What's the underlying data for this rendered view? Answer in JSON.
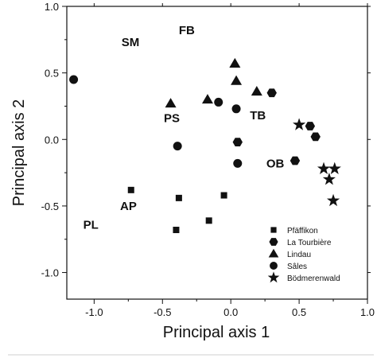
{
  "chart_data": {
    "type": "scatter",
    "xlabel": "Principal axis 1",
    "ylabel": "Principal axis 2",
    "xlim": [
      -1.2,
      1.0
    ],
    "ylim": [
      -1.2,
      1.0
    ],
    "x_ticks": [
      "-1.0",
      "-0.5",
      "0.0",
      "0.5",
      "1.0"
    ],
    "y_ticks": [
      "1.0",
      "0.5",
      "0.0",
      "-0.5",
      "-1.0"
    ],
    "grid": false,
    "legend_position": "bottom-right",
    "series": [
      {
        "name": "Pfäffikon",
        "marker": "square",
        "points": [
          [
            -0.73,
            -0.38
          ],
          [
            -0.38,
            -0.44
          ],
          [
            -0.05,
            -0.42
          ],
          [
            -0.16,
            -0.61
          ],
          [
            -0.4,
            -0.68
          ]
        ]
      },
      {
        "name": "La Tourbière",
        "marker": "hexagon",
        "points": [
          [
            0.3,
            0.35
          ],
          [
            0.05,
            -0.02
          ],
          [
            0.58,
            0.1
          ],
          [
            0.62,
            0.02
          ],
          [
            0.47,
            -0.16
          ]
        ]
      },
      {
        "name": "Lindau",
        "marker": "triangle",
        "points": [
          [
            0.03,
            0.57
          ],
          [
            0.04,
            0.44
          ],
          [
            -0.44,
            0.27
          ],
          [
            -0.17,
            0.3
          ],
          [
            0.19,
            0.36
          ]
        ]
      },
      {
        "name": "Sâles",
        "marker": "circle",
        "points": [
          [
            -1.15,
            0.45
          ],
          [
            -0.09,
            0.28
          ],
          [
            0.04,
            0.23
          ],
          [
            -0.39,
            -0.05
          ],
          [
            0.05,
            -0.18
          ]
        ]
      },
      {
        "name": "Bödmerenwald",
        "marker": "star",
        "points": [
          [
            0.5,
            0.11
          ],
          [
            0.68,
            -0.22
          ],
          [
            0.76,
            -0.22
          ],
          [
            0.72,
            -0.3
          ],
          [
            0.75,
            -0.46
          ]
        ]
      }
    ],
    "annotations": [
      {
        "text": "SM",
        "x": -0.8,
        "y": 0.7
      },
      {
        "text": "FB",
        "x": -0.38,
        "y": 0.79
      },
      {
        "text": "PS",
        "x": -0.49,
        "y": 0.13
      },
      {
        "text": "TB",
        "x": 0.14,
        "y": 0.15
      },
      {
        "text": "OB",
        "x": 0.26,
        "y": -0.21
      },
      {
        "text": "AP",
        "x": -0.81,
        "y": -0.53
      },
      {
        "text": "PL",
        "x": -1.08,
        "y": -0.67
      }
    ]
  }
}
